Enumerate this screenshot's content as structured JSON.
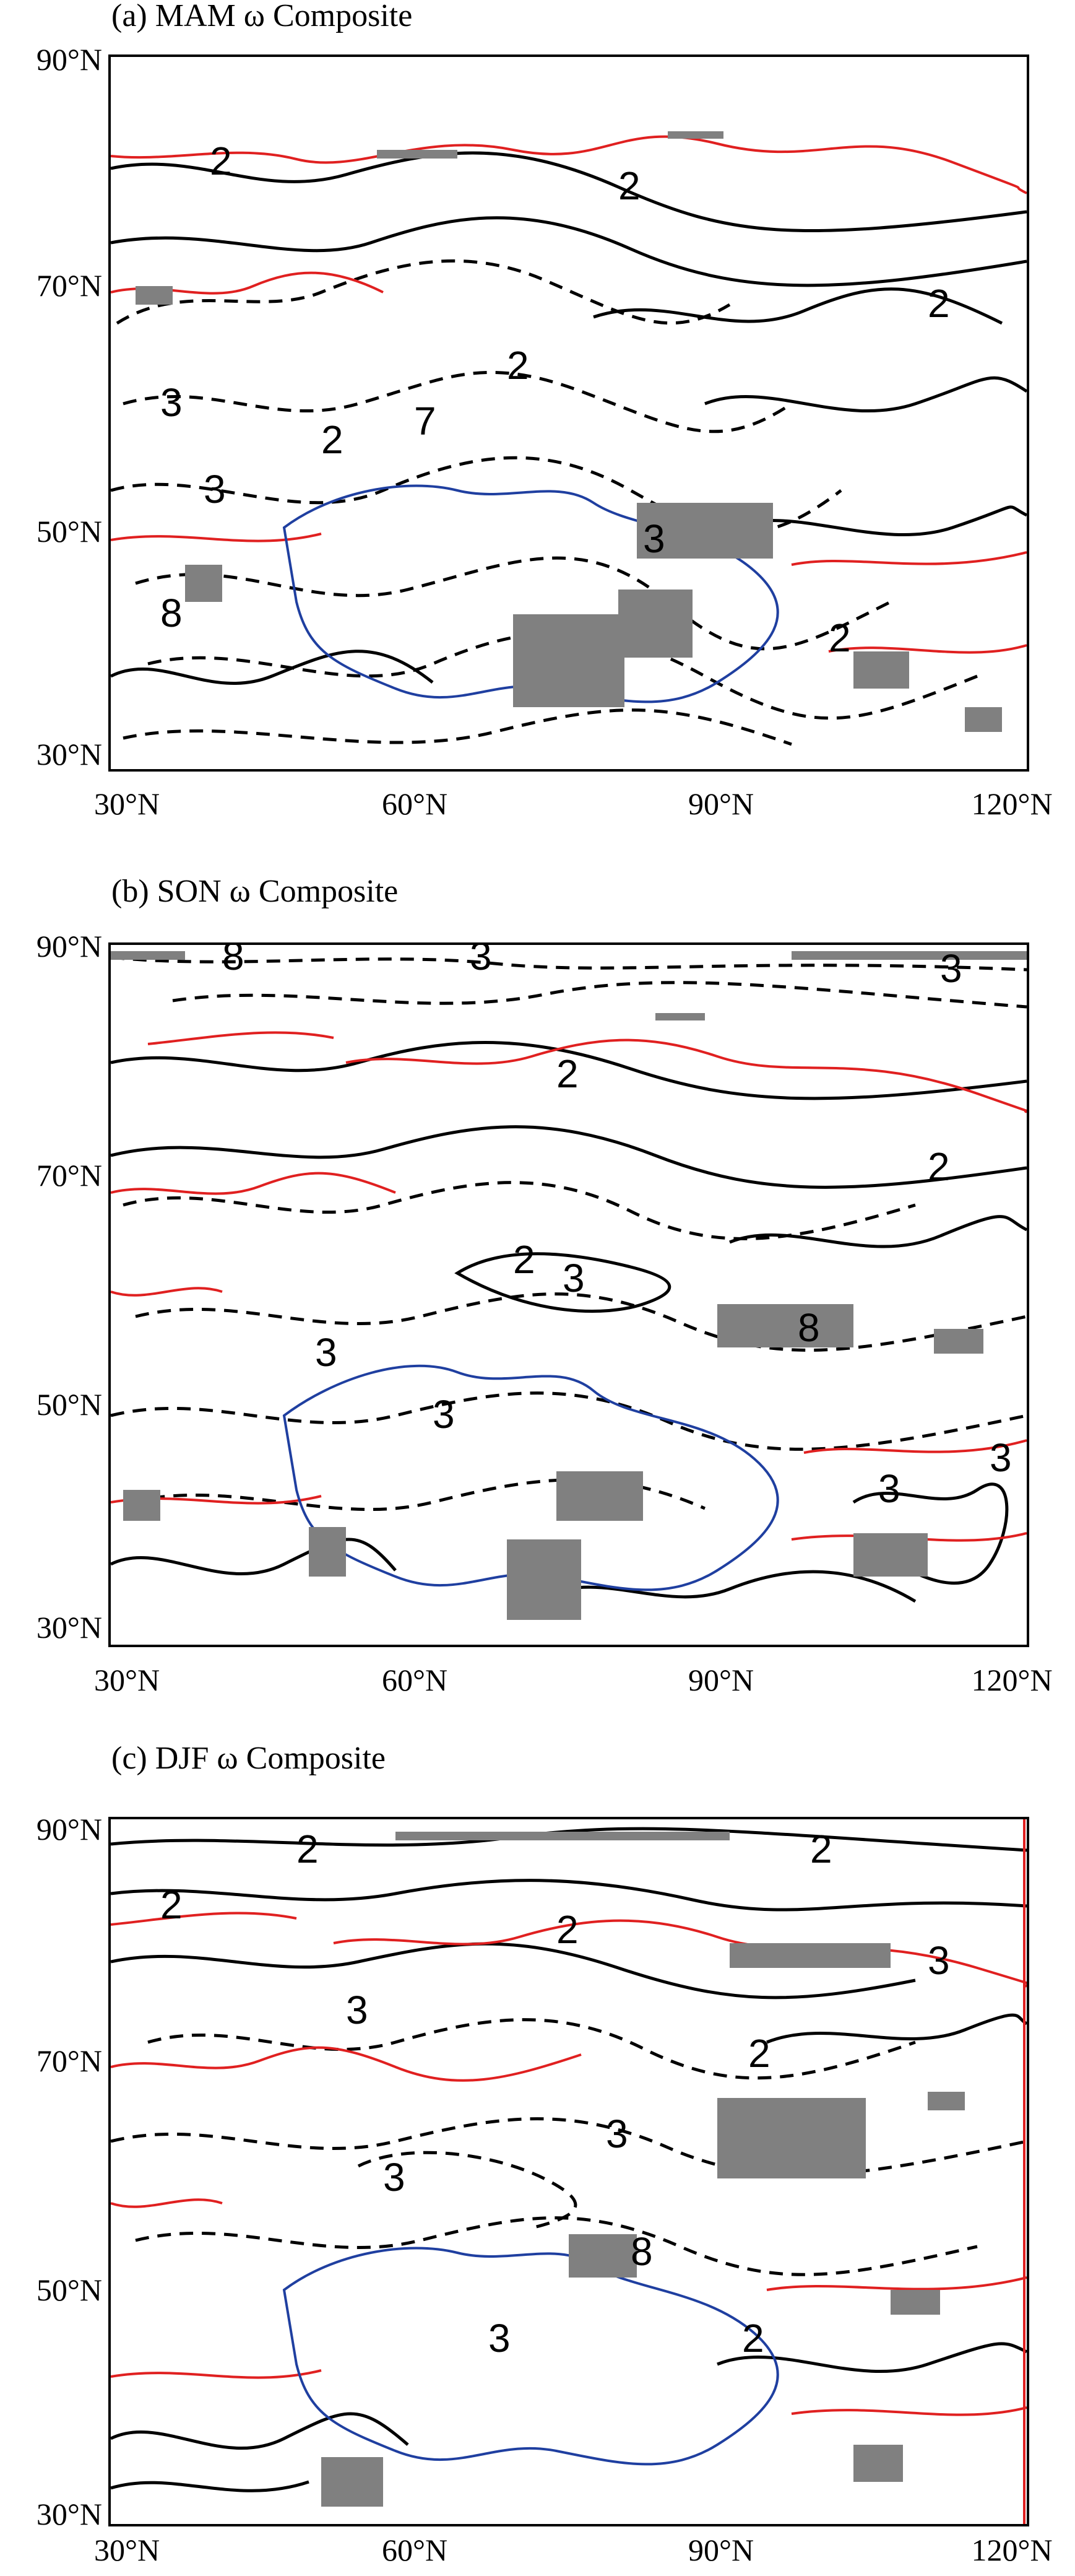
{
  "panels": [
    {
      "title": "(a) MAM ω Composite",
      "y_ticks": [
        "90°N",
        "70°N",
        "50°N",
        "30°N"
      ],
      "x_ticks": [
        "30°N",
        "60°N",
        "90°N",
        "120°N"
      ],
      "contour_labels": [
        "2",
        "2",
        "2",
        "2",
        "3",
        "2",
        "7",
        "3",
        "3",
        "8",
        "2"
      ]
    },
    {
      "title": "(b) SON ω Composite",
      "y_ticks": [
        "90°N",
        "70°N",
        "50°N",
        "30°N"
      ],
      "x_ticks": [
        "30°N",
        "60°N",
        "90°N",
        "120°N"
      ],
      "contour_labels": [
        "8",
        "3",
        "3",
        "2",
        "2",
        "2",
        "3",
        "3",
        "3",
        "8",
        "3",
        "3"
      ]
    },
    {
      "title": "(c) DJF ω Composite",
      "y_ticks": [
        "90°N",
        "70°N",
        "50°N",
        "30°N"
      ],
      "x_ticks": [
        "30°N",
        "60°N",
        "90°N",
        "120°N"
      ],
      "contour_labels": [
        "2",
        "2",
        "2",
        "2",
        "3",
        "3",
        "2",
        "3",
        "3",
        "3",
        "8",
        "2"
      ]
    }
  ],
  "colors": {
    "coastline": "#e02020",
    "basin_boundary": "#1f3fa0",
    "contour": "#000000",
    "significance_marker": "#808080"
  }
}
